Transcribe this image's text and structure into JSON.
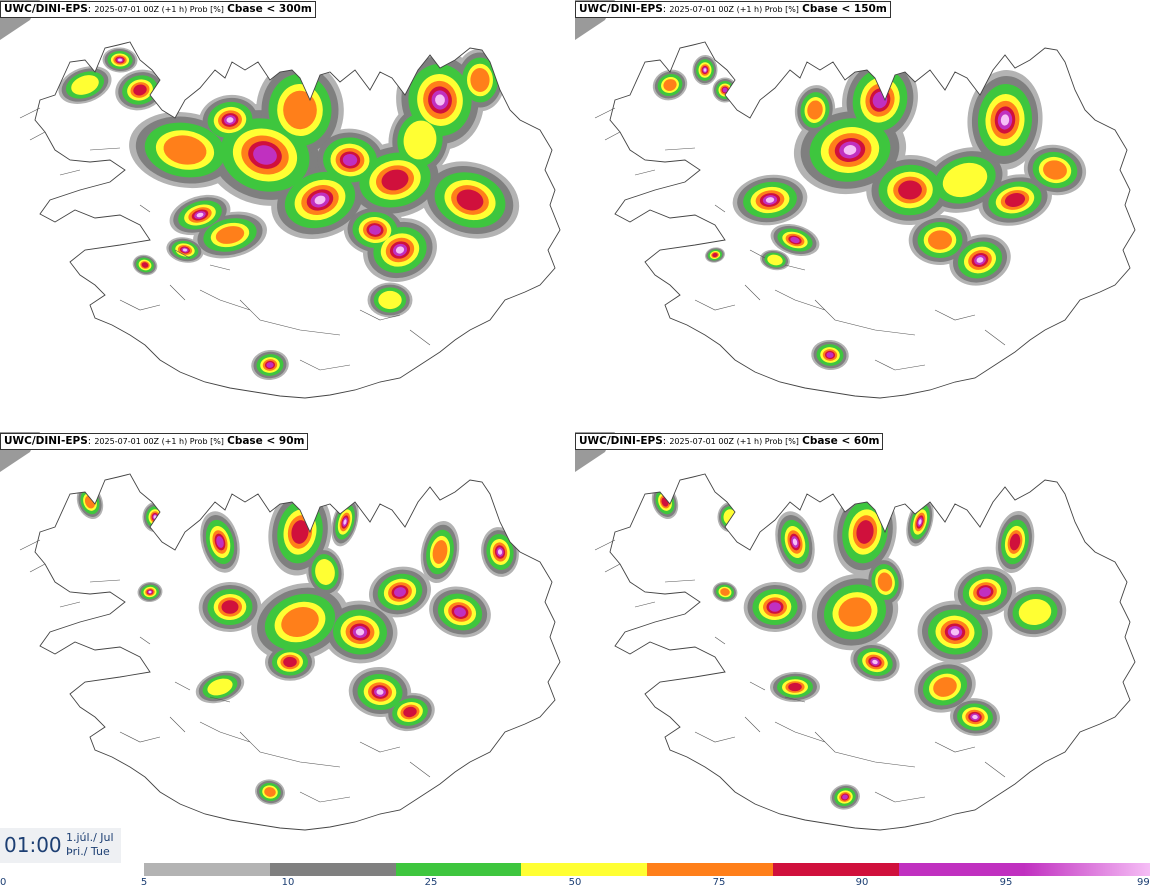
{
  "panels": [
    {
      "model": "UWC/DINI-EPS",
      "run": "2025-07-01 00Z (+1 h) Prob [%]",
      "variable": "Cbase < 300m"
    },
    {
      "model": "UWC/DINI-EPS",
      "run": "2025-07-01 00Z (+1 h) Prob [%]",
      "variable": "Cbase < 150m"
    },
    {
      "model": "UWC/DINI-EPS",
      "run": "2025-07-01 00Z (+1 h) Prob [%]",
      "variable": "Cbase < 90m"
    },
    {
      "model": "UWC/DINI-EPS",
      "run": "2025-07-01 00Z (+1 h) Prob [%]",
      "variable": "Cbase < 60m"
    }
  ],
  "valid_time": {
    "time": "01:00",
    "date_line1": "1.júl./ Jul",
    "date_line2": "Þri./ Tue"
  },
  "colorbar": {
    "ticks": [
      "0",
      "5",
      "10",
      "25",
      "50",
      "75",
      "90",
      "95",
      "99"
    ],
    "colors": [
      "#b3b3b3",
      "#7f7f7f",
      "#3ec63e",
      "#ffff33",
      "#ff7f1a",
      "#d0103c",
      "#c030c0",
      "#f6bff6"
    ]
  }
}
